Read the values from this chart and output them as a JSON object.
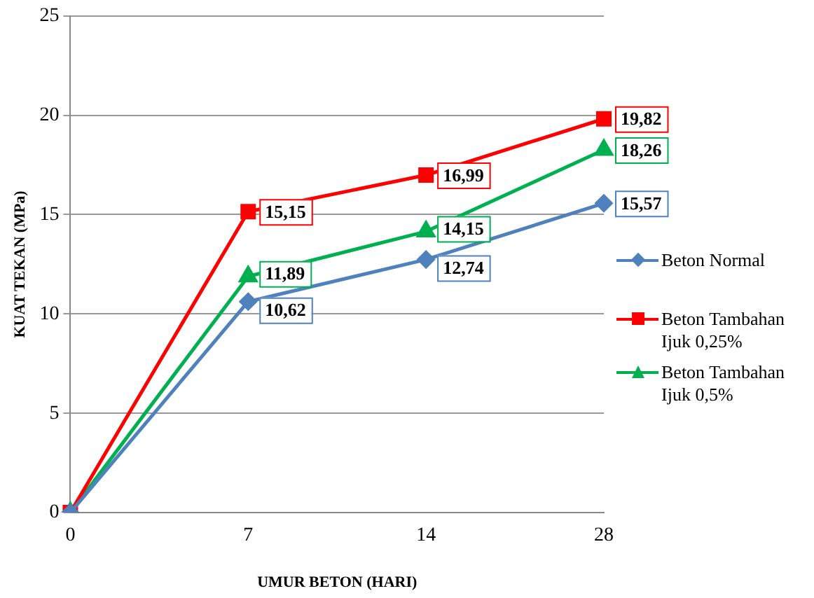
{
  "chart_data": {
    "type": "line",
    "xlabel": "UMUR BETON (HARI)",
    "ylabel": "KUAT TEKAN (MPa)",
    "categories": [
      "0",
      "7",
      "14",
      "28"
    ],
    "ylim": [
      0,
      25
    ],
    "yticks": [
      0,
      5,
      10,
      15,
      20,
      25
    ],
    "grid": "y",
    "legend": "right",
    "line_style": "solid",
    "series": [
      {
        "name": "Beton Normal",
        "color": "#4f81bd",
        "marker": "diamond",
        "values": [
          0,
          10.62,
          12.74,
          15.57
        ],
        "value_labels": [
          null,
          "10,62",
          "12,74",
          "15,57"
        ]
      },
      {
        "name": "Beton Tambahan Ijuk 0,25%",
        "color": "#ff0000",
        "marker": "square",
        "values": [
          0,
          15.15,
          16.99,
          19.82
        ],
        "value_labels": [
          null,
          "15,15",
          "16,99",
          "19,82"
        ]
      },
      {
        "name": "Beton Tambahan Ijuk 0,5%",
        "color": "#00b050",
        "marker": "triangle",
        "values": [
          0,
          11.89,
          14.15,
          18.26
        ],
        "value_labels": [
          null,
          "11,89",
          "14,15",
          "18,26"
        ]
      }
    ]
  }
}
